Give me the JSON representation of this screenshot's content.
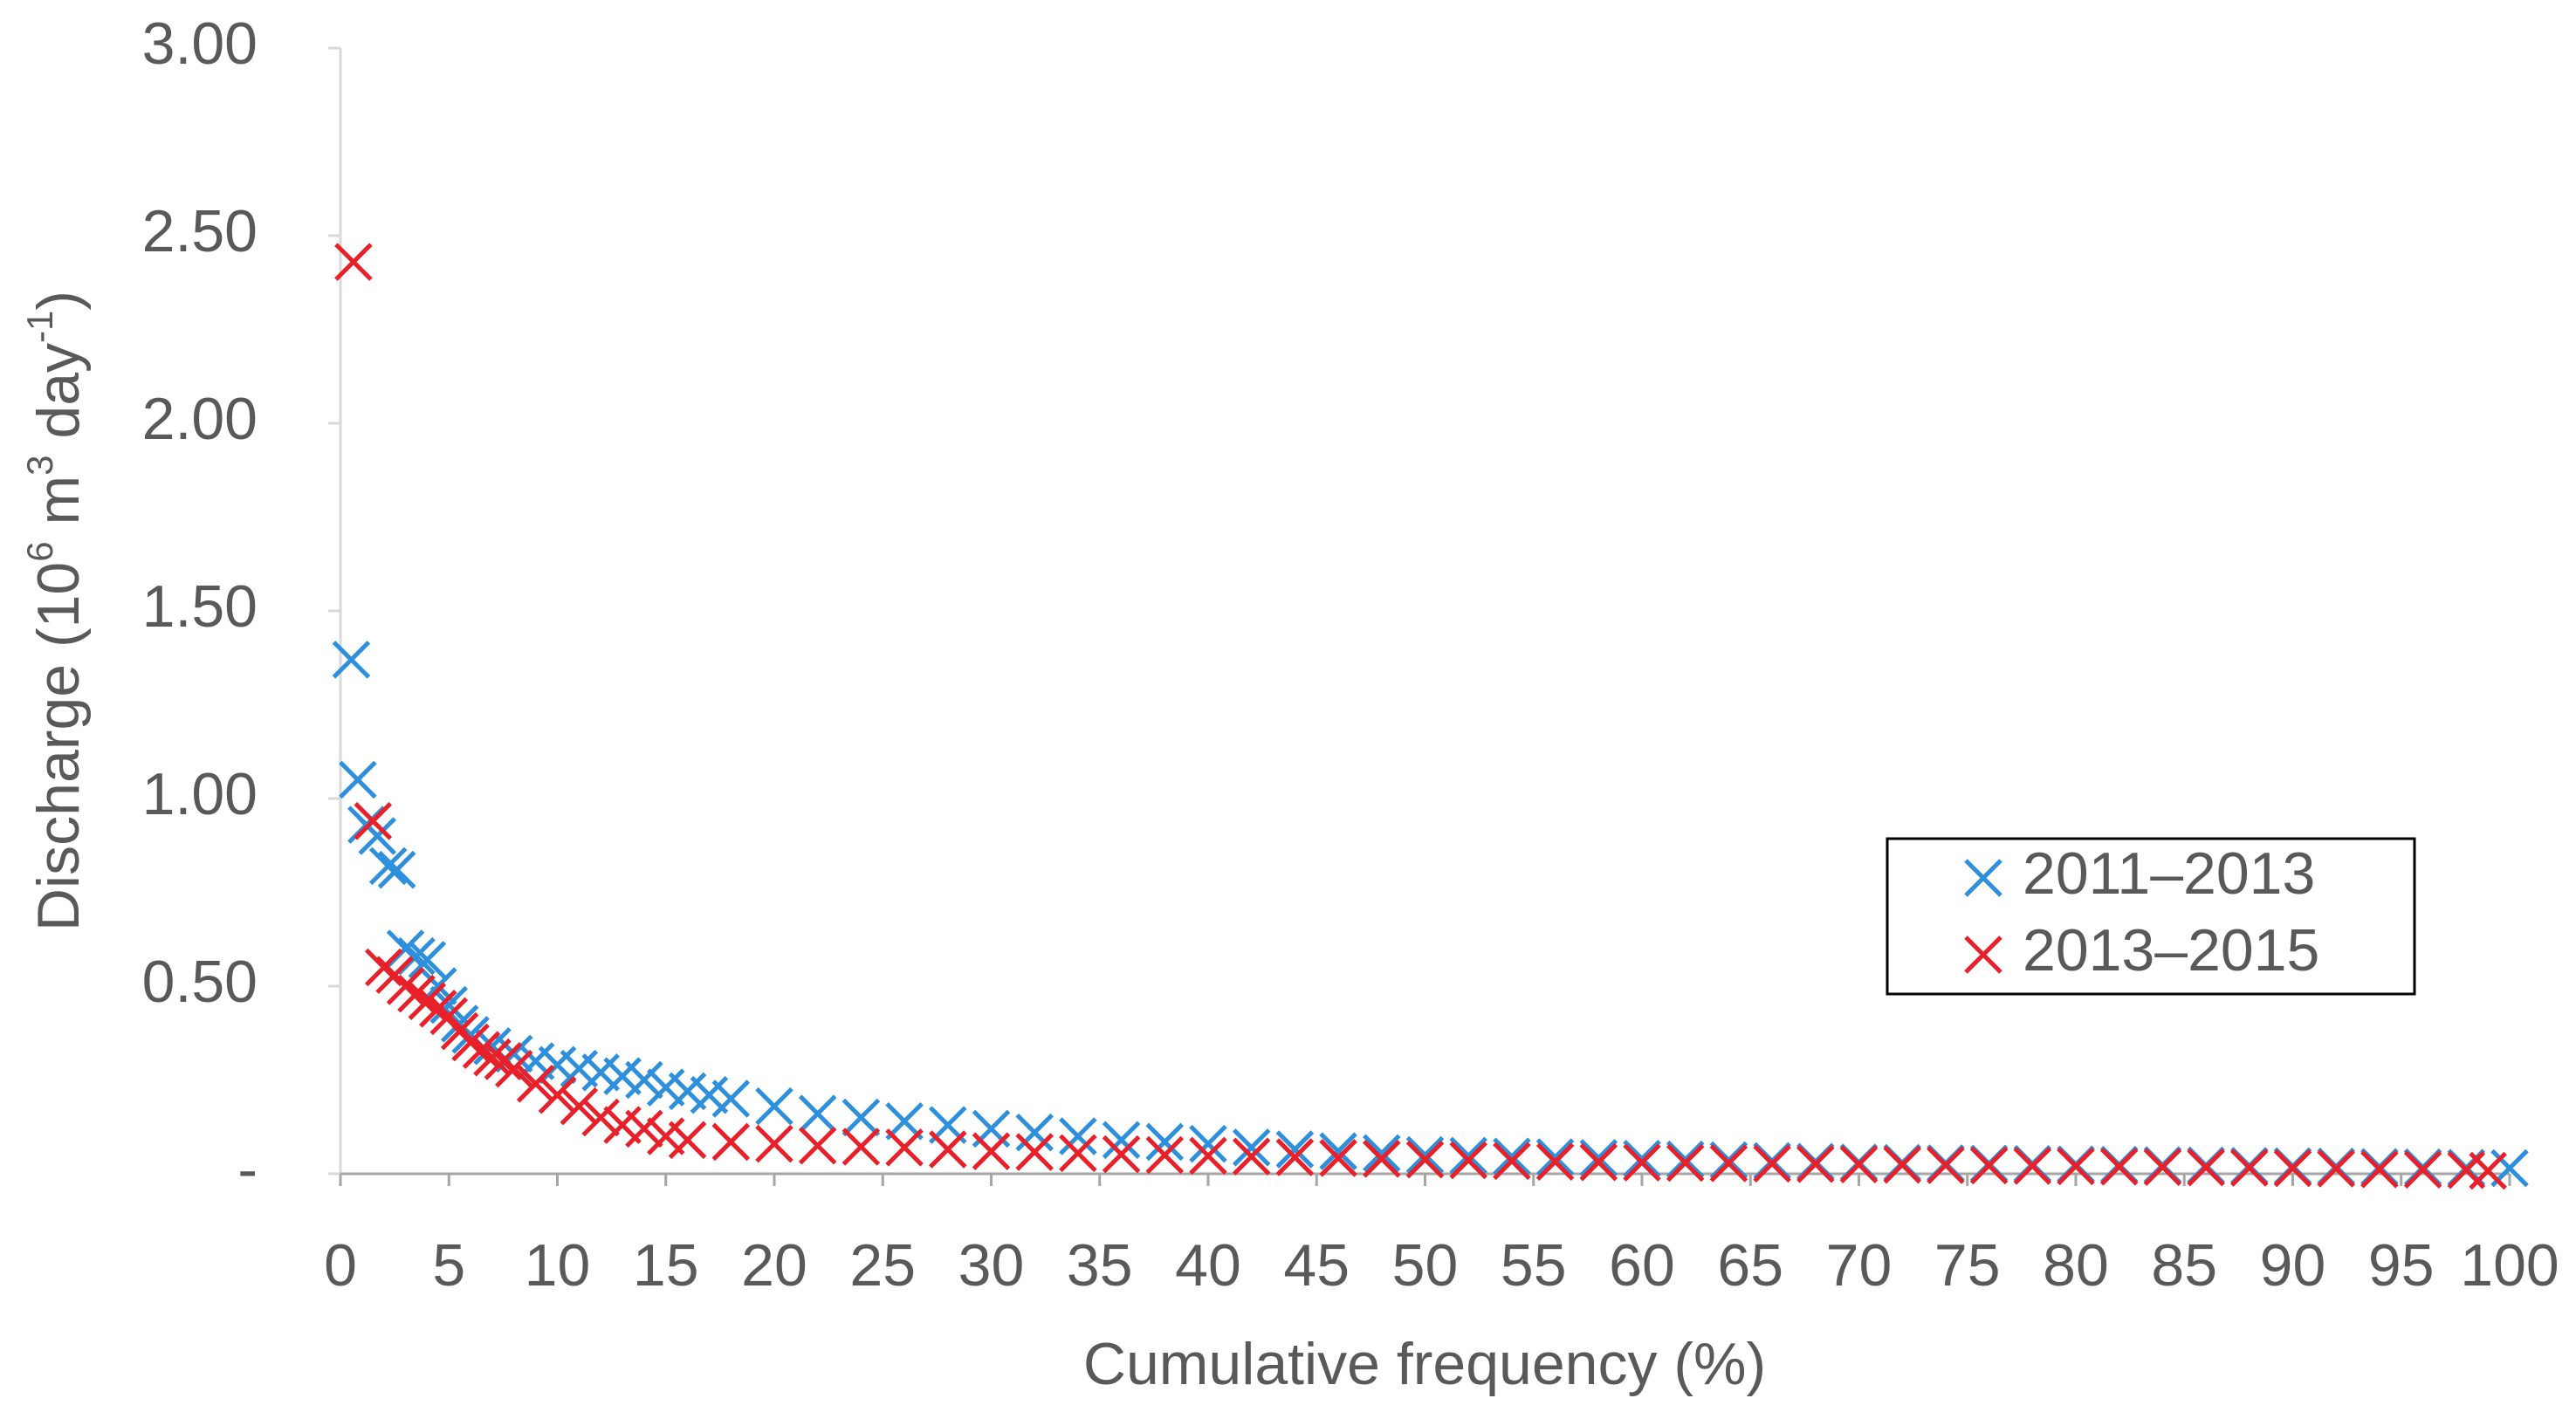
{
  "chart_data": {
    "type": "scatter",
    "x_label": "Cumulative frequency (%)",
    "y_label": [
      "Discharge (10",
      "6",
      " m",
      "3",
      " day",
      "-1",
      ")"
    ],
    "xlim": [
      0,
      100
    ],
    "xticks": [
      0,
      5,
      10,
      15,
      20,
      25,
      30,
      35,
      40,
      45,
      50,
      55,
      60,
      65,
      70,
      75,
      80,
      85,
      90,
      95,
      100
    ],
    "ylim": [
      0,
      3
    ],
    "yticks": [
      {
        "value": 0,
        "label": "-"
      },
      {
        "value": 0.5,
        "label": "0.50"
      },
      {
        "value": 1,
        "label": "1.00"
      },
      {
        "value": 1.5,
        "label": "1.50"
      },
      {
        "value": 2,
        "label": "2.00"
      },
      {
        "value": 2.5,
        "label": "2.50"
      },
      {
        "value": 3,
        "label": "3.00"
      }
    ],
    "legend": "right",
    "series": [
      {
        "name": "2011–2013",
        "color": "#2e8fdc",
        "x": [
          0.5,
          0.8,
          1.2,
          1.7,
          2.2,
          2.6,
          3,
          3.5,
          4,
          4.5,
          5,
          5.5,
          6,
          7,
          8,
          9,
          10,
          11,
          12,
          13,
          14,
          15,
          16,
          17,
          18,
          20,
          22,
          24,
          26,
          28,
          30,
          32,
          34,
          36,
          38,
          40,
          42,
          44,
          46,
          48,
          50,
          52,
          54,
          56,
          58,
          60,
          62,
          64,
          66,
          68,
          70,
          72,
          74,
          76,
          78,
          80,
          82,
          84,
          86,
          88,
          90,
          92,
          94,
          96,
          98,
          100
        ],
        "values": [
          1.37,
          1.05,
          0.93,
          0.9,
          0.82,
          0.81,
          0.6,
          0.58,
          0.57,
          0.5,
          0.45,
          0.4,
          0.37,
          0.34,
          0.32,
          0.3,
          0.29,
          0.28,
          0.27,
          0.26,
          0.25,
          0.23,
          0.22,
          0.21,
          0.2,
          0.18,
          0.16,
          0.15,
          0.14,
          0.13,
          0.12,
          0.11,
          0.1,
          0.09,
          0.085,
          0.08,
          0.07,
          0.065,
          0.06,
          0.055,
          0.05,
          0.048,
          0.046,
          0.044,
          0.042,
          0.04,
          0.038,
          0.036,
          0.034,
          0.032,
          0.03,
          0.029,
          0.028,
          0.027,
          0.026,
          0.025,
          0.024,
          0.023,
          0.022,
          0.021,
          0.02,
          0.019,
          0.018,
          0.017,
          0.016,
          0.015
        ]
      },
      {
        "name": "2013–2015",
        "color": "#e8202a",
        "x": [
          0.6,
          1.5,
          2,
          2.5,
          3,
          3.5,
          4,
          4.5,
          5,
          5.5,
          6,
          6.5,
          7,
          7.5,
          8,
          9,
          10,
          11,
          12,
          13,
          14,
          15,
          16,
          18,
          20,
          22,
          24,
          26,
          28,
          30,
          32,
          34,
          36,
          38,
          40,
          42,
          44,
          46,
          48,
          50,
          52,
          54,
          56,
          58,
          60,
          62,
          64,
          66,
          68,
          70,
          72,
          74,
          76,
          78,
          80,
          82,
          84,
          86,
          88,
          90,
          92,
          94,
          96,
          98,
          99
        ],
        "values": [
          2.43,
          0.94,
          0.55,
          0.53,
          0.5,
          0.48,
          0.46,
          0.44,
          0.42,
          0.38,
          0.35,
          0.33,
          0.31,
          0.3,
          0.28,
          0.24,
          0.21,
          0.18,
          0.15,
          0.13,
          0.12,
          0.1,
          0.09,
          0.085,
          0.08,
          0.075,
          0.072,
          0.07,
          0.065,
          0.06,
          0.058,
          0.055,
          0.052,
          0.05,
          0.048,
          0.046,
          0.044,
          0.042,
          0.04,
          0.038,
          0.036,
          0.034,
          0.032,
          0.031,
          0.03,
          0.029,
          0.028,
          0.027,
          0.026,
          0.025,
          0.024,
          0.023,
          0.022,
          0.021,
          0.02,
          0.019,
          0.018,
          0.017,
          0.016,
          0.015,
          0.014,
          0.012,
          0.011,
          0.01,
          0.008
        ]
      }
    ]
  }
}
